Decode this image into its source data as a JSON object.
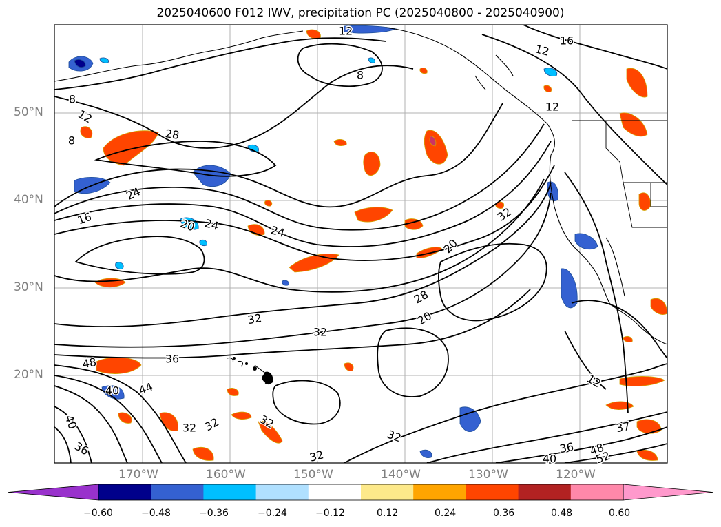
{
  "title": "2025040600 F012 IWV, precipitation PC (2025040800 - 2025040900)",
  "map": {
    "lat_labels": [
      "50°N",
      "40°N",
      "30°N",
      "20°N"
    ],
    "lon_labels": [
      "170°W",
      "160°W",
      "150°W",
      "140°W",
      "130°W",
      "120°W"
    ],
    "contour_labels": [
      "12",
      "16",
      "8",
      "12",
      "8",
      "12",
      "12",
      "8",
      "28",
      "24",
      "16",
      "20",
      "24",
      "24",
      "32",
      "28",
      "20",
      "20",
      "32",
      "32",
      "36",
      "48",
      "40",
      "44",
      "40",
      "36",
      "32",
      "32",
      "32",
      "32",
      "32",
      "12",
      "37",
      "36",
      "48",
      "52",
      "40"
    ]
  },
  "colorbar": {
    "colors": [
      "#9932cc",
      "#00008b",
      "#3461d1",
      "#00bfff",
      "#b0e0ff",
      "#ffffff",
      "#fde98a",
      "#ffa500",
      "#ff4500",
      "#b22222",
      "#ff88aa",
      "#ff99cc"
    ],
    "tick_labels": [
      "−0.60",
      "−0.48",
      "−0.36",
      "−0.24",
      "−0.12",
      "0.12",
      "0.24",
      "0.36",
      "0.48",
      "0.60"
    ]
  }
}
